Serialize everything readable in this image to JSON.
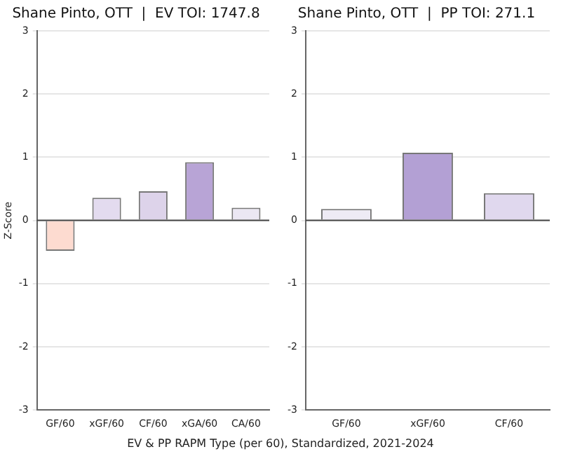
{
  "chart_data": [
    {
      "type": "bar",
      "title": "Shane Pinto, OTT  |  EV TOI: 1747.8",
      "ylabel": "Z-Score",
      "categories": [
        "GF/60",
        "xGF/60",
        "CF/60",
        "xGA/60",
        "CA/60"
      ],
      "values": [
        -0.48,
        0.36,
        0.46,
        0.92,
        0.2
      ],
      "colors": [
        "#fddbd0",
        "#e3dbef",
        "#ddd3ea",
        "#b8a4d6",
        "#ebe7f3"
      ],
      "ylim": [
        -3,
        3
      ],
      "yticks": [
        -3,
        -2,
        -1,
        0,
        1,
        2,
        3
      ],
      "grid": "y",
      "ref_lines": [
        {
          "axis": "y",
          "value": 0,
          "color": "#444444"
        }
      ],
      "annotations": [
        "EV & PP RAPM Type (per 60), Standardized, 2021-2024"
      ]
    },
    {
      "type": "bar",
      "title": "Shane Pinto, OTT  |  PP TOI: 271.1",
      "categories": [
        "GF/60",
        "xGF/60",
        "CF/60"
      ],
      "values": [
        0.18,
        1.07,
        0.43
      ],
      "colors": [
        "#eeebf5",
        "#b3a0d4",
        "#e0d8ee"
      ],
      "ylim": [
        -3,
        3
      ],
      "yticks": [
        -3,
        -2,
        -1,
        0,
        1,
        2,
        3
      ],
      "grid": "y",
      "ref_lines": [
        {
          "axis": "y",
          "value": 0,
          "color": "#444444"
        }
      ]
    }
  ]
}
